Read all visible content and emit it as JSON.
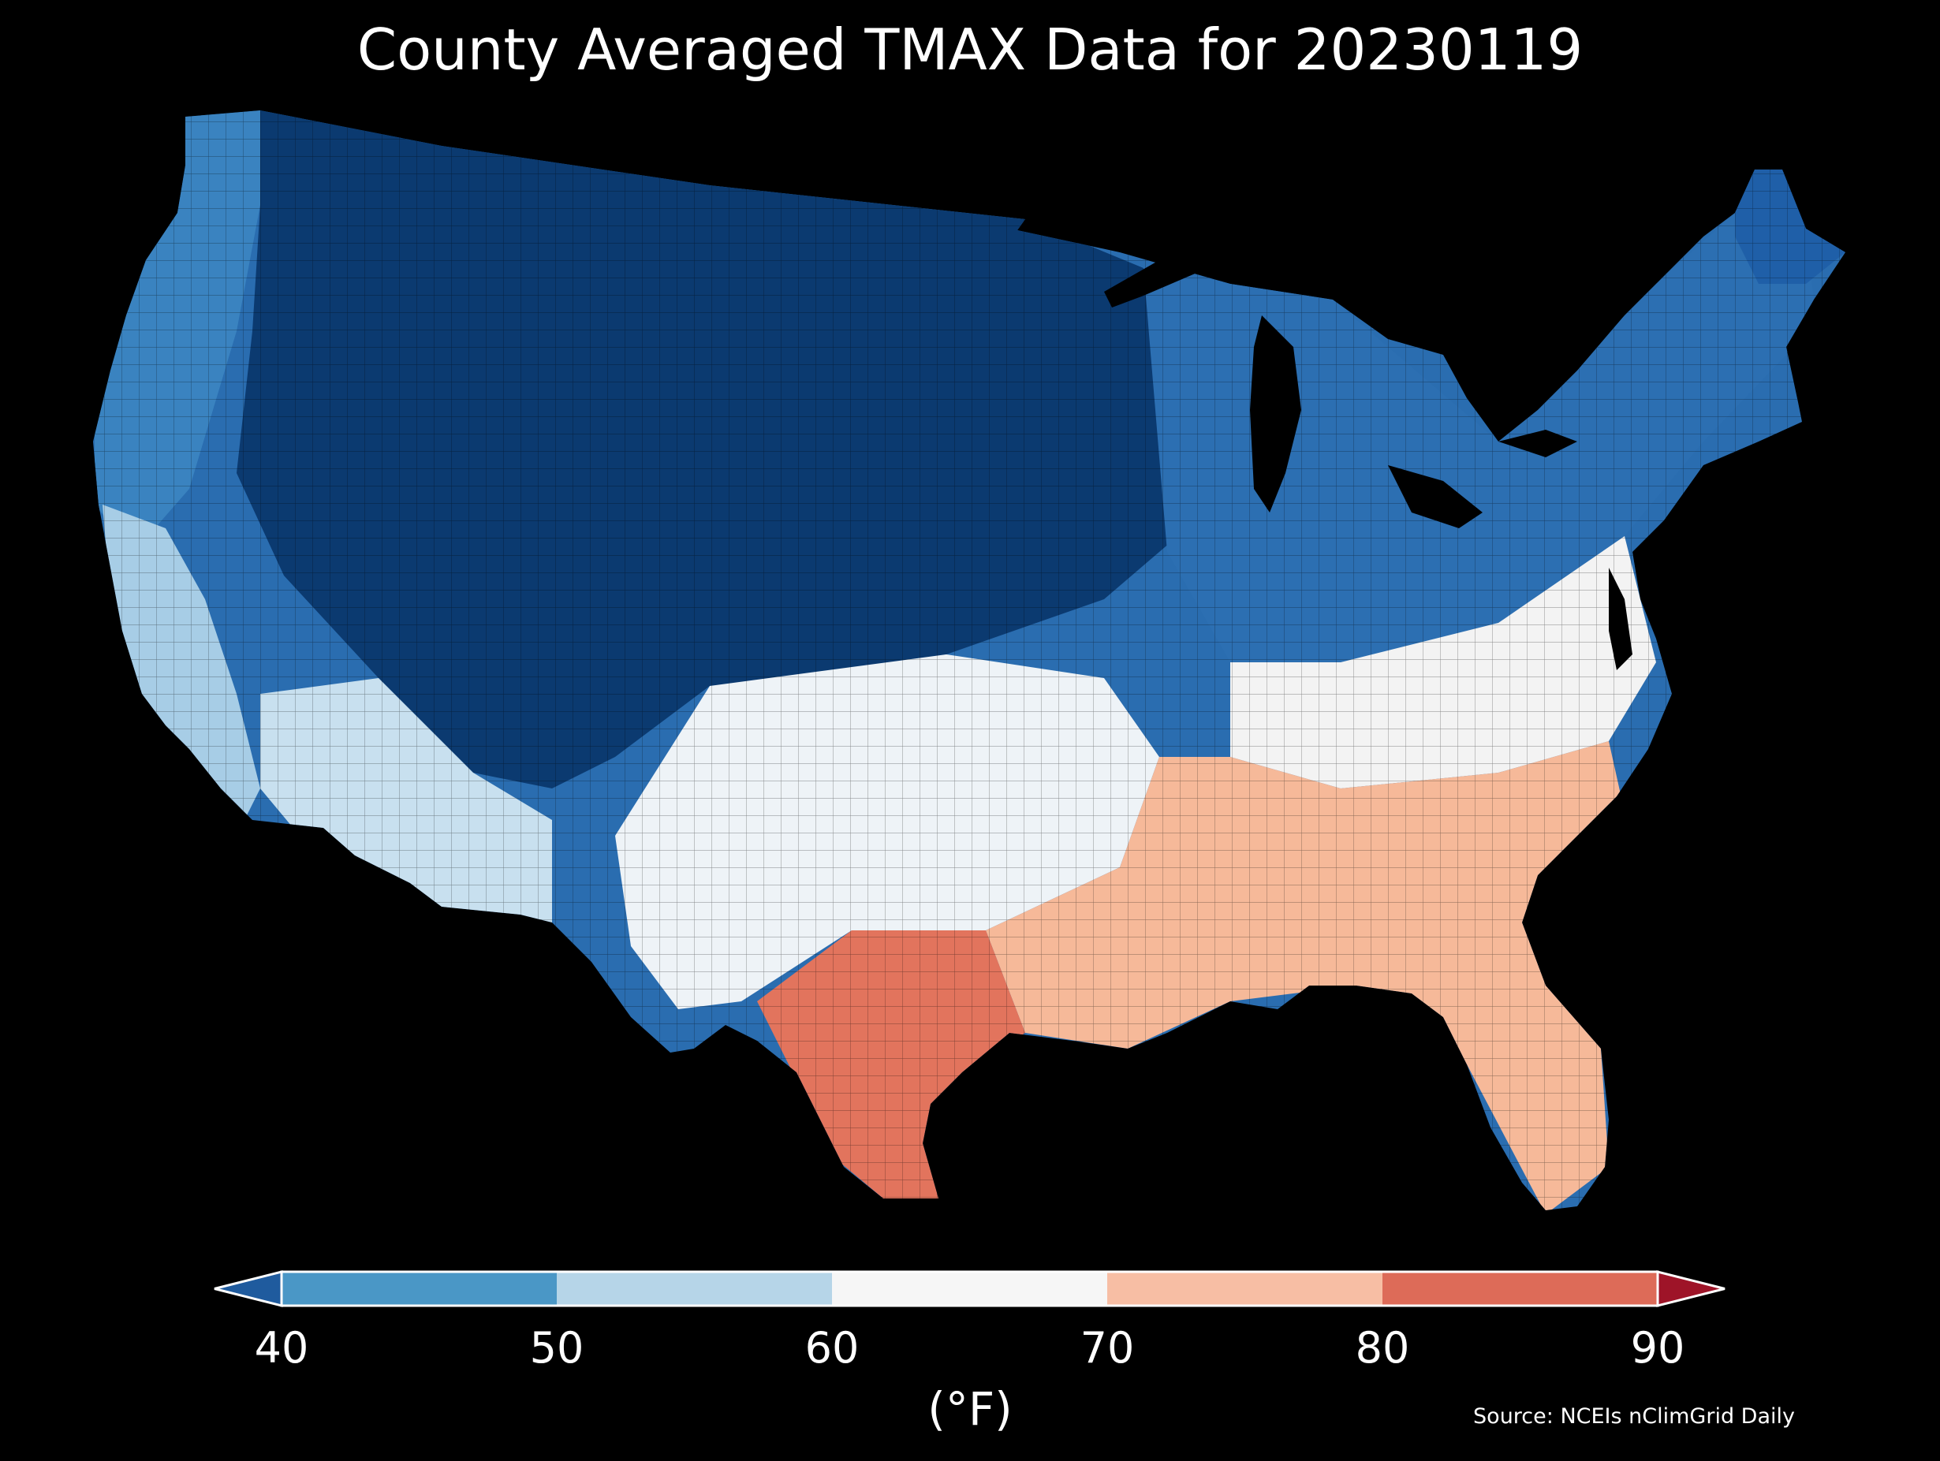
{
  "title": "County Averaged TMAX Data for 20230119",
  "colorbar": {
    "unit_label": "(°F)",
    "ticks": [
      "40",
      "50",
      "60",
      "70",
      "80",
      "90"
    ],
    "bins": [
      {
        "range": [
          null,
          40
        ],
        "color": "#1f5b9e"
      },
      {
        "range": [
          40,
          50
        ],
        "color": "#4a97c6"
      },
      {
        "range": [
          50,
          60
        ],
        "color": "#b6d5e8"
      },
      {
        "range": [
          60,
          70
        ],
        "color": "#f6f6f6"
      },
      {
        "range": [
          70,
          80
        ],
        "color": "#f7bea4"
      },
      {
        "range": [
          80,
          90
        ],
        "color": "#dd6b58"
      },
      {
        "range": [
          90,
          null
        ],
        "color": "#9e1428"
      }
    ]
  },
  "source": "Source: NCEIs nClimGrid Daily",
  "regions": [
    {
      "name": "northern-rockies-plains",
      "bin": "below-40",
      "color": "#0b3a70"
    },
    {
      "name": "pacific-northwest",
      "bin": "40-50",
      "color": "#3a83c0"
    },
    {
      "name": "great-lakes-northeast",
      "bin": "40-50",
      "color": "#2c6fb2"
    },
    {
      "name": "new-england",
      "bin": "below-40",
      "color": "#1f5fa8"
    },
    {
      "name": "california-coast",
      "bin": "50-60",
      "color": "#a7cde6"
    },
    {
      "name": "southwest-desert",
      "bin": "50-60",
      "color": "#c8e0ef"
    },
    {
      "name": "southern-plains",
      "bin": "60-70",
      "color": "#eef3f7"
    },
    {
      "name": "mid-atlantic",
      "bin": "60-70",
      "color": "#f3f3f3"
    },
    {
      "name": "southeast",
      "bin": "70-80",
      "color": "#f6b999"
    },
    {
      "name": "south-texas",
      "bin": "80-90",
      "color": "#e2745d"
    }
  ]
}
